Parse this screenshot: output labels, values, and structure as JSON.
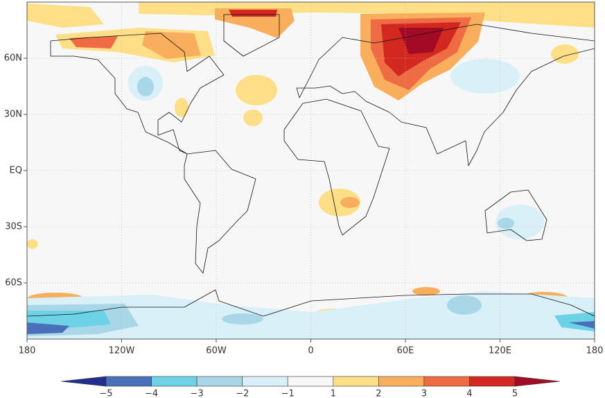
{
  "map": {
    "lon_lim": [
      -180,
      180
    ],
    "lat_lim": [
      -90,
      90
    ],
    "lon_ticks": [
      {
        "value": -180,
        "label": "180"
      },
      {
        "value": -120,
        "label": "120W"
      },
      {
        "value": -60,
        "label": "60W"
      },
      0,
      {
        "value": 60,
        "label": "60E"
      },
      {
        "value": 120,
        "label": "120E"
      },
      180
    ],
    "lat_ticks": [
      {
        "value": 60,
        "label": "60N"
      },
      {
        "value": 30,
        "label": "30N"
      },
      {
        "value": 0,
        "label": "EQ"
      },
      {
        "value": -30,
        "label": "30S"
      },
      {
        "value": -60,
        "label": "60S"
      }
    ],
    "grid": true,
    "colorbar": {
      "levels": [
        {
          "value": -5,
          "label": "−5"
        },
        {
          "value": -4,
          "label": "−4"
        },
        {
          "value": -3,
          "label": "−3"
        },
        {
          "value": -2,
          "label": "−2"
        },
        {
          "value": -1,
          "label": "−1"
        },
        1,
        2,
        3,
        4,
        5
      ],
      "colors": [
        "#232f8c",
        "#4a70b9",
        "#6dd2e6",
        "#a9d7e8",
        "#d9f0f8",
        "#f7f7f7",
        "#fddf88",
        "#f8ae5c",
        "#ef6b43",
        "#d2281f",
        "#a20a26"
      ]
    }
  }
}
